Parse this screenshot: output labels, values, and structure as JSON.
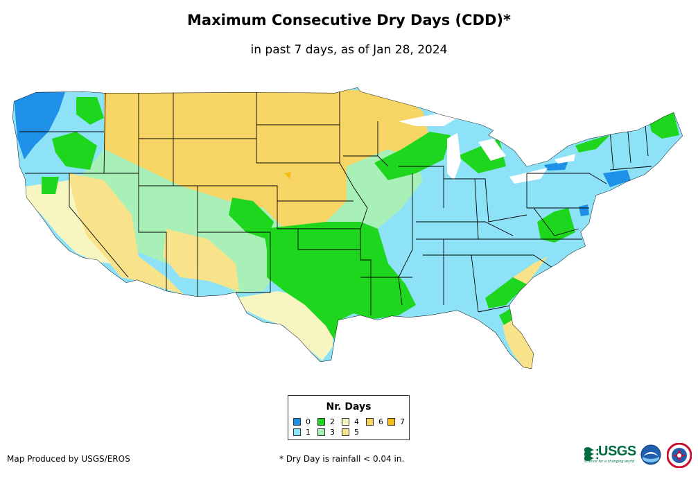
{
  "title": "Maximum Consecutive Dry Days (CDD)*",
  "subtitle": "in past 7 days, as of Jan 28, 2024",
  "legend": {
    "title": "Nr. Days",
    "items": [
      {
        "label": "0",
        "color": "#1e90e8"
      },
      {
        "label": "1",
        "color": "#8ee2f7"
      },
      {
        "label": "2",
        "color": "#1ed61e"
      },
      {
        "label": "3",
        "color": "#a8f0b8"
      },
      {
        "label": "4",
        "color": "#f8f6c0"
      },
      {
        "label": "5",
        "color": "#f8e38a"
      },
      {
        "label": "6",
        "color": "#f6d564"
      },
      {
        "label": "7",
        "color": "#f6be14"
      }
    ]
  },
  "credit": "Map Produced by USGS/EROS",
  "footnote": "* Dry Day is rainfall < 0.04 in.",
  "logos": {
    "usgs": "USGS",
    "usgs_tagline": "science for a changing world",
    "noaa": "noaa-logo",
    "nws": "nws-logo"
  }
}
